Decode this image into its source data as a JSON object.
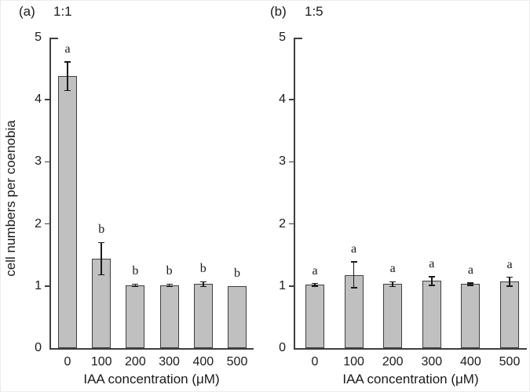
{
  "figure": {
    "y_axis_title": "cell numbers per coenobia",
    "x_axis_title": "IAA concentration (μM)",
    "colors": {
      "bar_fill": "#c0c0c0",
      "bar_border": "#3f3f3f",
      "axis": "#3f3f3f",
      "error_bar": "#1a1a1a",
      "text": "#1a1a1a"
    }
  },
  "panels": [
    {
      "tag": "(a)",
      "title": "1:1"
    },
    {
      "tag": "(b)",
      "title": "1:5"
    }
  ],
  "chart_data": [
    {
      "type": "bar",
      "panel": "(a)",
      "title": "1:1",
      "categories": [
        "0",
        "100",
        "200",
        "300",
        "400",
        "500"
      ],
      "values": [
        4.38,
        1.44,
        1.01,
        1.01,
        1.03,
        1.0
      ],
      "errors": [
        0.23,
        0.26,
        0.02,
        0.02,
        0.04,
        0
      ],
      "sig_letters": [
        "a",
        "b",
        "b",
        "b",
        "b",
        "b"
      ],
      "xlabel": "IAA concentration (μM)",
      "ylabel": "cell numbers per coenobia",
      "ylim": [
        0,
        5
      ],
      "yticks": [
        0,
        1,
        2,
        3,
        4,
        5
      ],
      "grid": false,
      "legend": false
    },
    {
      "type": "bar",
      "panel": "(b)",
      "title": "1:5",
      "categories": [
        "0",
        "100",
        "200",
        "300",
        "400",
        "500"
      ],
      "values": [
        1.02,
        1.18,
        1.03,
        1.08,
        1.03,
        1.07
      ],
      "errors": [
        0.02,
        0.21,
        0.04,
        0.07,
        0.02,
        0.07
      ],
      "sig_letters": [
        "a",
        "a",
        "a",
        "a",
        "a",
        "a"
      ],
      "xlabel": "IAA concentration (μM)",
      "ylabel": "",
      "ylim": [
        0,
        5
      ],
      "yticks": [
        0,
        1,
        2,
        3,
        4,
        5
      ],
      "grid": false,
      "legend": false
    }
  ]
}
